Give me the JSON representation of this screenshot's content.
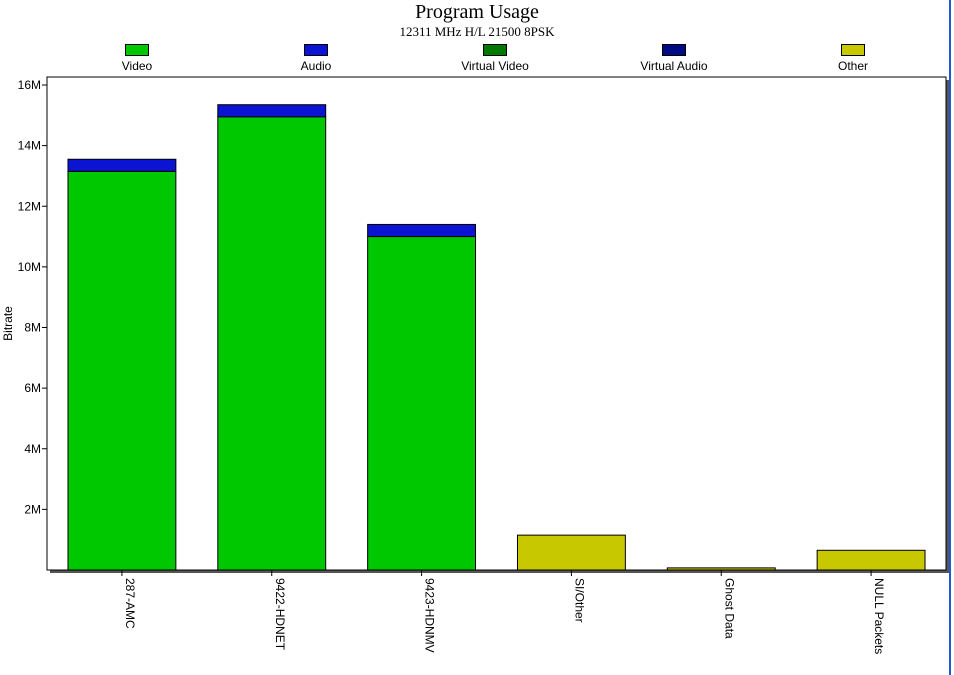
{
  "chart_data": {
    "type": "bar",
    "stacked": true,
    "title": "Program Usage",
    "subtitle": "12311 MHz H/L 21500 8PSK",
    "ylabel": "Bitrate",
    "xlabel": "",
    "ylim": [
      0,
      16000000
    ],
    "yticks": [
      {
        "value": 2000000,
        "label": "2M"
      },
      {
        "value": 4000000,
        "label": "4M"
      },
      {
        "value": 6000000,
        "label": "6M"
      },
      {
        "value": 8000000,
        "label": "8M"
      },
      {
        "value": 10000000,
        "label": "10M"
      },
      {
        "value": 12000000,
        "label": "12M"
      },
      {
        "value": 14000000,
        "label": "14M"
      },
      {
        "value": 16000000,
        "label": "16M"
      }
    ],
    "categories": [
      "287-AMC",
      "9422-HDNET",
      "9423-HDNMV",
      "SI/Other",
      "Ghost Data",
      "NULL Packets"
    ],
    "series": [
      {
        "name": "Video",
        "color": "#00c800",
        "values": [
          13150000,
          14950000,
          11000000,
          0,
          0,
          0
        ]
      },
      {
        "name": "Audio",
        "color": "#0a14d2",
        "values": [
          400000,
          400000,
          400000,
          0,
          0,
          0
        ]
      },
      {
        "name": "Virtual Video",
        "color": "#007800",
        "values": [
          0,
          0,
          0,
          0,
          0,
          0
        ]
      },
      {
        "name": "Virtual Audio",
        "color": "#000a82",
        "values": [
          0,
          0,
          0,
          0,
          0,
          0
        ]
      },
      {
        "name": "Other",
        "color": "#c8c800",
        "values": [
          0,
          0,
          0,
          1150000,
          70000,
          650000
        ]
      }
    ],
    "legend_position": "top",
    "grid": false
  }
}
